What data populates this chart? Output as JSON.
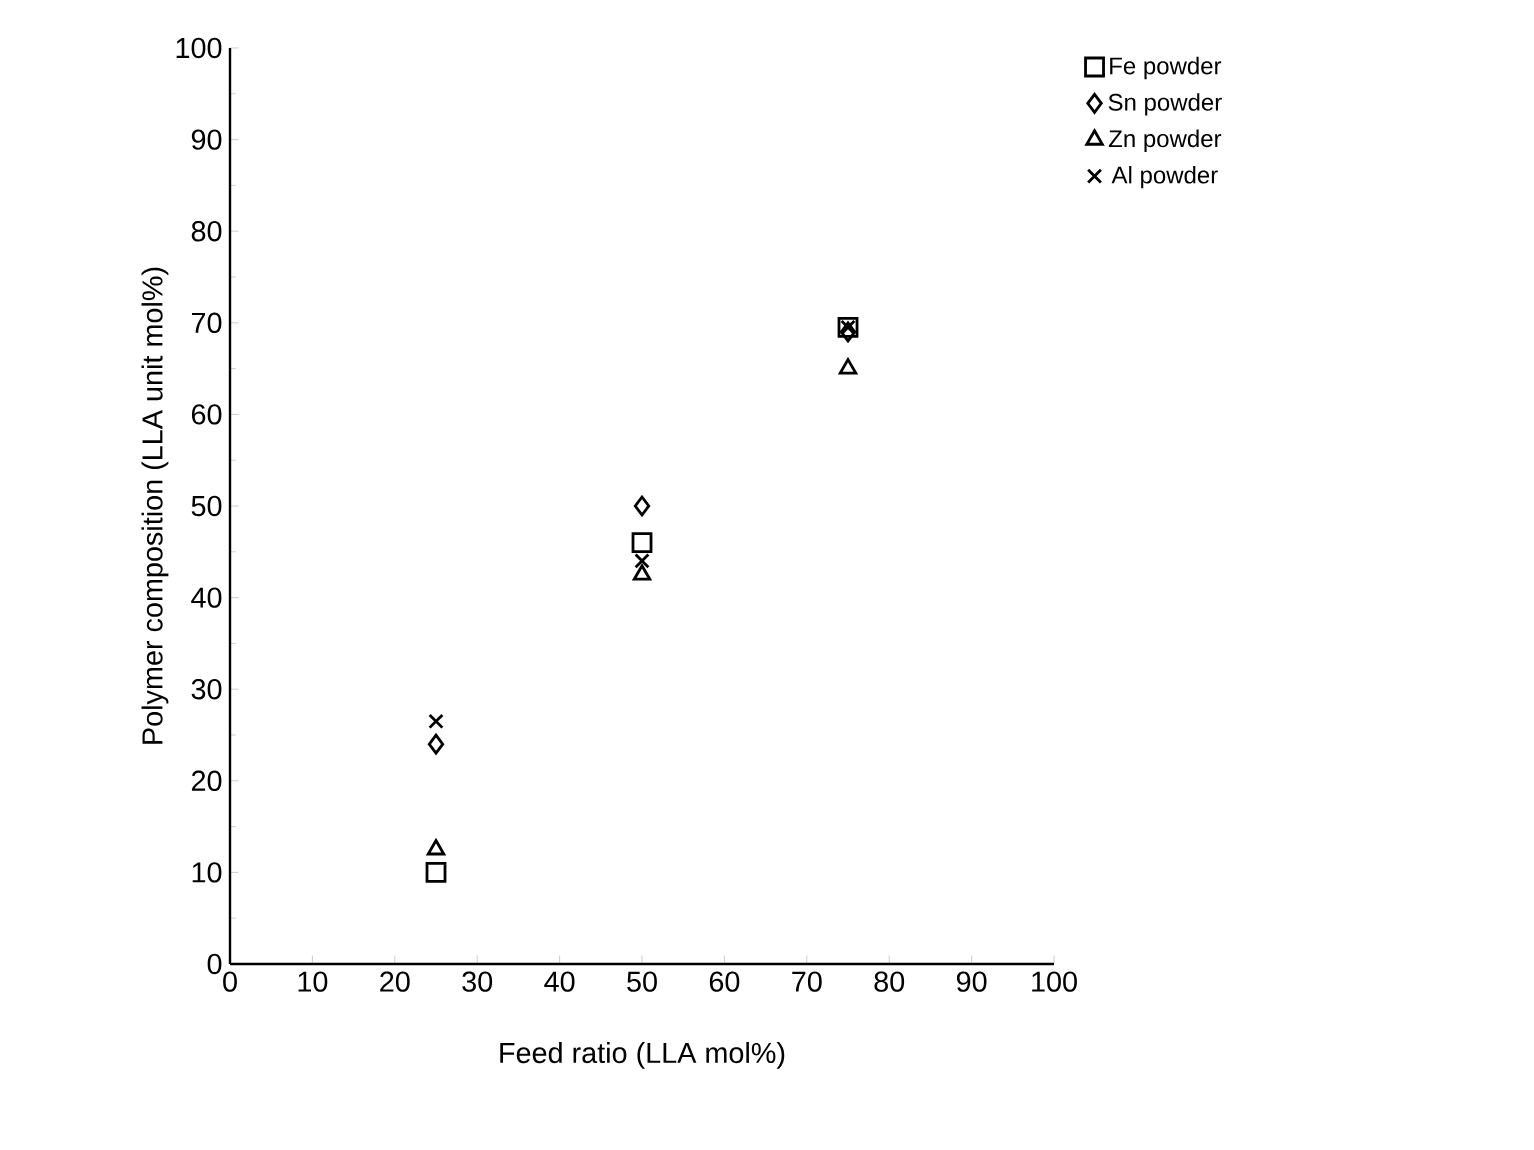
{
  "chart_data": {
    "type": "scatter",
    "xlabel": "Feed ratio (LLA mol%)",
    "ylabel": "Polymer composition (LLA unit mol%)",
    "xlim": [
      0,
      100
    ],
    "ylim": [
      0,
      100
    ],
    "xticks": [
      0,
      10,
      20,
      30,
      40,
      50,
      60,
      70,
      80,
      90,
      100
    ],
    "yticks": [
      0,
      10,
      20,
      30,
      40,
      50,
      60,
      70,
      80,
      90,
      100
    ],
    "grid": false,
    "legend": "right",
    "x": [
      25,
      50,
      75
    ],
    "series": [
      {
        "name": "Fe powder",
        "color": "#000000",
        "marker": "square",
        "values": [
          10,
          46,
          69.5
        ]
      },
      {
        "name": "Sn powder",
        "color": "#000000",
        "marker": "diamond",
        "values": [
          24,
          50,
          69
        ]
      },
      {
        "name": "Zn powder",
        "color": "#000000",
        "marker": "triangle",
        "values": [
          12.5,
          42.5,
          65
        ]
      },
      {
        "name": "Al powder",
        "color": "#000000",
        "marker": "cross",
        "values": [
          26.5,
          44,
          69.5
        ]
      }
    ]
  }
}
